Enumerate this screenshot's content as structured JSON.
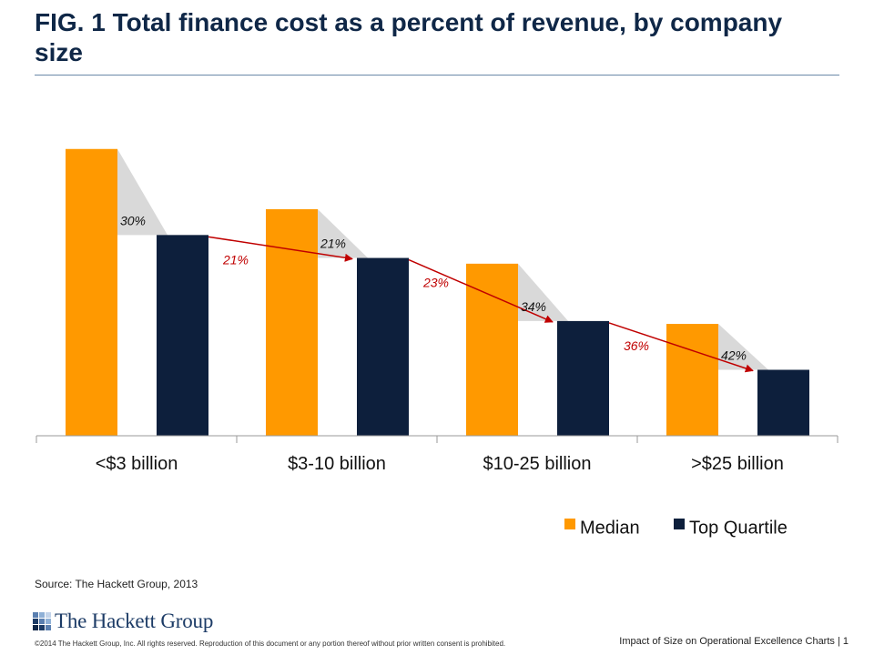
{
  "header": {
    "title": "FIG. 1   Total finance cost as a percent of revenue, by company size"
  },
  "chart_data": {
    "type": "bar",
    "title": "FIG. 1   Total finance cost as a percent of revenue, by company size",
    "categories": [
      "<$3 billion",
      "$3-10 billion",
      "$10-25 billion",
      ">$25 billion"
    ],
    "series": [
      {
        "name": "Median",
        "color": "#ff9900",
        "values": [
          1.0,
          0.79,
          0.6,
          0.39
        ]
      },
      {
        "name": "Top Quartile",
        "color": "#0d1f3c",
        "values": [
          0.7,
          0.62,
          0.4,
          0.23
        ]
      }
    ],
    "within_group_reductions": [
      "30%",
      "21%",
      "34%",
      "42%"
    ],
    "between_group_reductions": [
      "21%",
      "23%",
      "36%"
    ],
    "ylim": [
      0,
      1.05
    ],
    "grid": false,
    "legend_position": "bottom-right",
    "xlabel": "",
    "ylabel": ""
  },
  "legend": {
    "median_label": "Median",
    "top_quartile_label": "Top Quartile"
  },
  "colors": {
    "median": "#ff9900",
    "top_quartile": "#0d1f3c",
    "arrow": "#c00000",
    "wedge": "#d9d9d9"
  },
  "source": "Source: The Hackett Group, 2013",
  "logo": {
    "text": "The Hackett Group"
  },
  "footer": {
    "copyright": "©2014 The Hackett Group, Inc.  All rights reserved. Reproduction of this document or any portion thereof without prior written consent is prohibited.",
    "right": "Impact of Size on Operational Excellence Charts  |  1"
  }
}
